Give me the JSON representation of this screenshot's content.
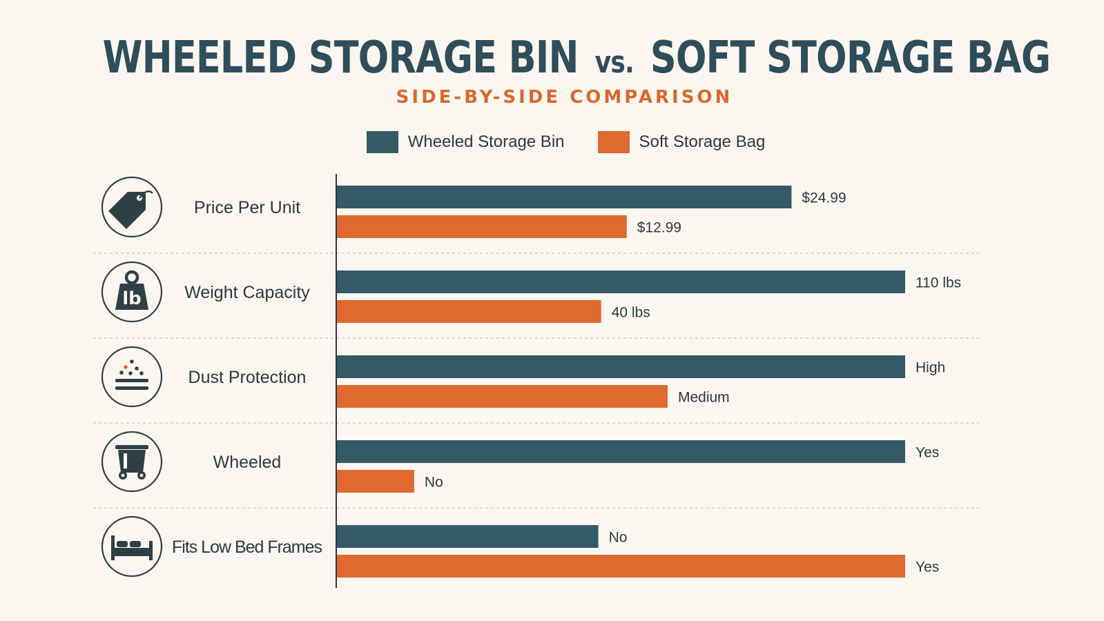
{
  "header": {
    "title_left": "WHEELED STORAGE BIN",
    "title_vs": "vs.",
    "title_right": "SOFT STORAGE BAG",
    "subtitle": "SIDE-BY-SIDE  COMPARISON"
  },
  "colors": {
    "bin": "#345a66",
    "bag": "#de6a2f",
    "divider": "#cfc9c0",
    "axis": "#2a3940",
    "icon": "#2f3f46"
  },
  "chart_data": {
    "type": "bar",
    "orientation": "horizontal",
    "legend_placement": "top",
    "series": [
      {
        "name": "Wheeled Storage Bin",
        "color": "#345a66"
      },
      {
        "name": "Soft Storage Bag",
        "color": "#de6a2f"
      }
    ],
    "categories": [
      {
        "label": "Price Per Unit",
        "icon": "price-tag-icon",
        "values": [
          0.8,
          0.51
        ],
        "labels": [
          "$24.99",
          "$12.99"
        ]
      },
      {
        "label": "Weight Capacity",
        "icon": "weight-lb-icon",
        "values": [
          1.0,
          0.465
        ],
        "labels": [
          "110 lbs",
          "40 lbs"
        ]
      },
      {
        "label": "Dust Protection",
        "icon": "dust-shield-icon",
        "values": [
          1.0,
          0.582
        ],
        "labels": [
          "High",
          "Medium"
        ]
      },
      {
        "label": "Wheeled",
        "icon": "wheeled-bin-icon",
        "values": [
          1.0,
          0.136
        ],
        "labels": [
          "Yes",
          "No"
        ]
      },
      {
        "label": "Fits Low Bed Frames",
        "icon": "bed-icon",
        "values": [
          0.46,
          1.0
        ],
        "labels": [
          "No",
          "Yes"
        ]
      }
    ]
  }
}
